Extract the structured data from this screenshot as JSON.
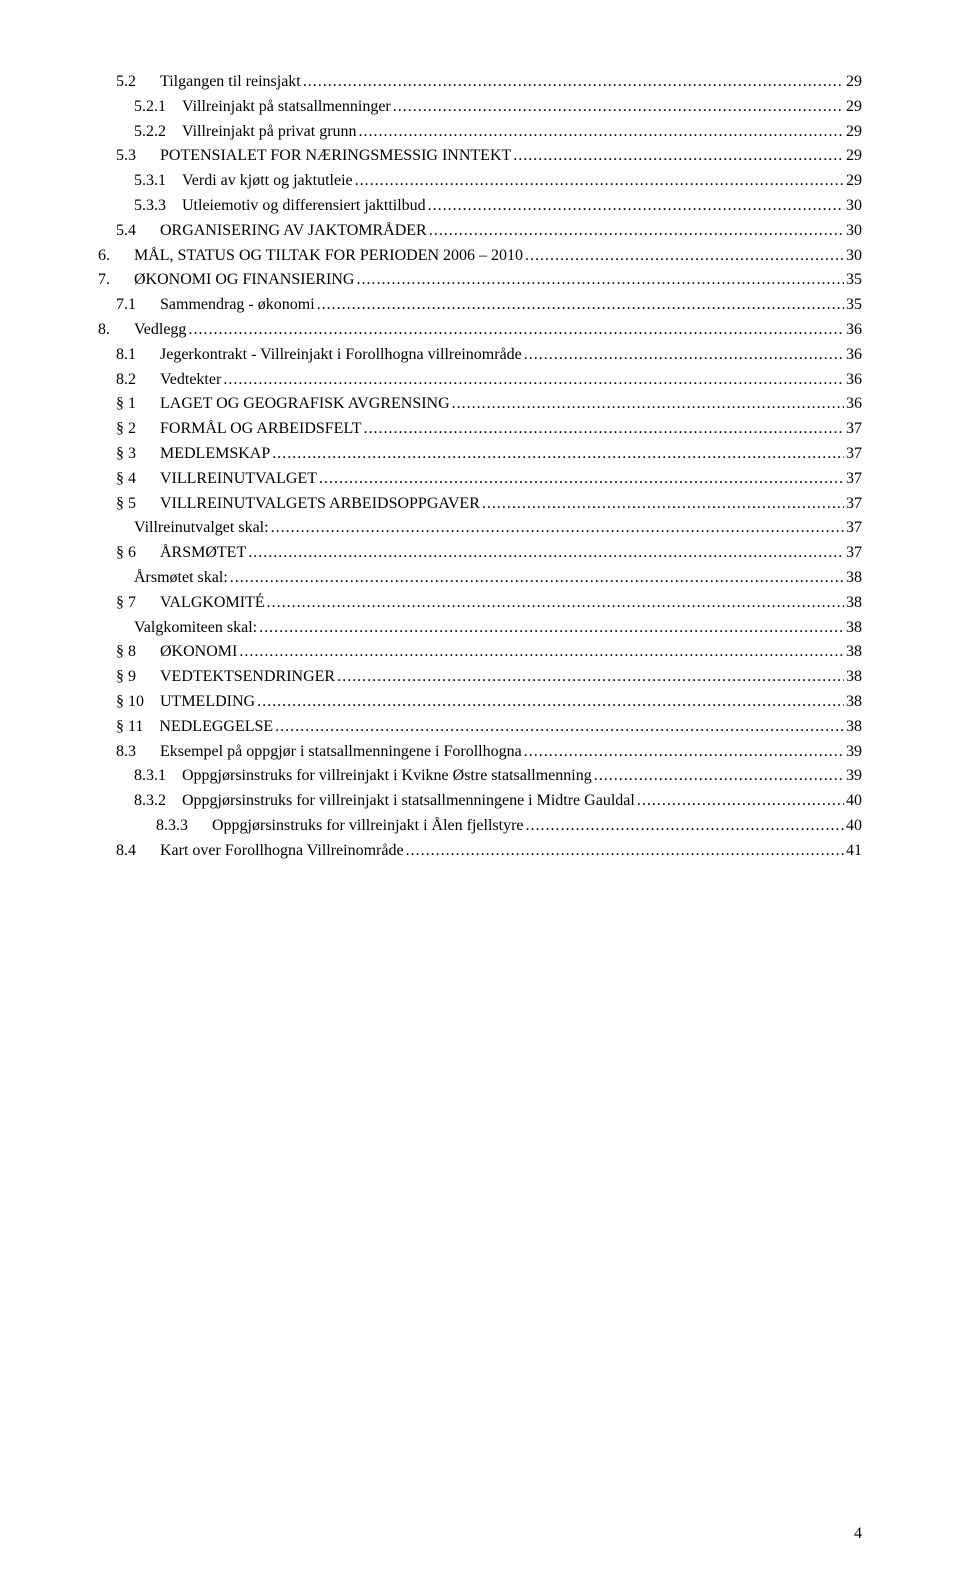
{
  "page_number": "4",
  "toc": [
    {
      "indent": 1,
      "num": "5.2",
      "pad": 6,
      "title": "Tilgangen til reinsjakt",
      "page": "29"
    },
    {
      "indent": 2,
      "num": "5.2.1",
      "pad": 4,
      "title": "Villreinjakt på statsallmenninger",
      "page": "29"
    },
    {
      "indent": 2,
      "num": "5.2.2",
      "pad": 4,
      "title": "Villreinjakt på privat grunn",
      "page": "29"
    },
    {
      "indent": 1,
      "num": "5.3",
      "pad": 6,
      "title": "POTENSIALET FOR NÆRINGSMESSIG INNTEKT",
      "page": "29"
    },
    {
      "indent": 2,
      "num": "5.3.1",
      "pad": 4,
      "title": "Verdi av kjøtt og jaktutleie",
      "page": "29"
    },
    {
      "indent": 2,
      "num": "5.3.3",
      "pad": 4,
      "title": "Utleiemotiv og differensiert jakttilbud",
      "page": "30"
    },
    {
      "indent": 1,
      "num": "5.4",
      "pad": 6,
      "title": "ORGANISERING AV JAKTOMRÅDER",
      "page": "30"
    },
    {
      "indent": 0,
      "num": "6.",
      "pad": 6,
      "title": "MÅL, STATUS OG TILTAK FOR PERIODEN 2006 – 2010",
      "page": "30"
    },
    {
      "indent": 0,
      "num": "7.",
      "pad": 6,
      "title": "ØKONOMI OG FINANSIERING",
      "page": "35"
    },
    {
      "indent": 1,
      "num": "7.1",
      "pad": 6,
      "title": "Sammendrag - økonomi",
      "page": "35"
    },
    {
      "indent": 0,
      "num": "8.",
      "pad": 6,
      "title": "Vedlegg",
      "page": "36"
    },
    {
      "indent": 1,
      "num": "8.1",
      "pad": 6,
      "title": "Jegerkontrakt - Villreinjakt i Forollhogna villreinområde",
      "page": "36"
    },
    {
      "indent": 1,
      "num": "8.2",
      "pad": 6,
      "title": "Vedtekter",
      "page": "36"
    },
    {
      "indent": 1,
      "num": "§ 1",
      "pad": 6,
      "title": "LAGET OG GEOGRAFISK AVGRENSING",
      "page": "36"
    },
    {
      "indent": 1,
      "num": "§ 2",
      "pad": 6,
      "title": "FORMÅL OG ARBEIDSFELT",
      "page": "37"
    },
    {
      "indent": 1,
      "num": "§ 3",
      "pad": 6,
      "title": "MEDLEMSKAP",
      "page": "37"
    },
    {
      "indent": 1,
      "num": "§ 4",
      "pad": 6,
      "title": "VILLREINUTVALGET",
      "page": "37"
    },
    {
      "indent": 1,
      "num": "§ 5",
      "pad": 6,
      "title": "VILLREINUTVALGETS ARBEIDSOPPGAVER",
      "page": "37"
    },
    {
      "indent": 2,
      "num": "",
      "pad": 0,
      "title": "Villreinutvalget skal:",
      "page": "37"
    },
    {
      "indent": 1,
      "num": "§ 6",
      "pad": 6,
      "title": "ÅRSMØTET",
      "page": "37"
    },
    {
      "indent": 2,
      "num": "",
      "pad": 0,
      "title": "Årsmøtet skal:",
      "page": "38"
    },
    {
      "indent": 1,
      "num": "§ 7",
      "pad": 6,
      "title": "VALGKOMITÉ",
      "page": "38"
    },
    {
      "indent": 2,
      "num": "",
      "pad": 0,
      "title": "Valgkomiteen skal:",
      "page": "38"
    },
    {
      "indent": 1,
      "num": "§ 8",
      "pad": 6,
      "title": "ØKONOMI",
      "page": "38"
    },
    {
      "indent": 1,
      "num": "§ 9",
      "pad": 6,
      "title": "VEDTEKTSENDRINGER",
      "page": "38"
    },
    {
      "indent": 1,
      "num": "§ 10",
      "pad": 4,
      "title": "UTMELDING",
      "page": "38"
    },
    {
      "indent": 1,
      "num": "§ 11",
      "pad": 4,
      "title": "NEDLEGGELSE",
      "page": "38"
    },
    {
      "indent": 1,
      "num": "8.3",
      "pad": 6,
      "title": "Eksempel på oppgjør i statsallmenningene i Forollhogna",
      "page": "39"
    },
    {
      "indent": 2,
      "num": "8.3.1",
      "pad": 4,
      "title": "Oppgjørsinstruks for villreinjakt i Kvikne Østre statsallmenning",
      "page": "39"
    },
    {
      "indent": 2,
      "num": "8.3.2",
      "pad": 4,
      "title": "Oppgjørsinstruks for villreinjakt i statsallmenningene i Midtre Gauldal",
      "page": "40"
    },
    {
      "indent": 3,
      "num": "8.3.3",
      "pad": 6,
      "title": "Oppgjørsinstruks for villreinjakt i Ålen fjellstyre",
      "page": "40"
    },
    {
      "indent": 1,
      "num": "8.4",
      "pad": 6,
      "title": "Kart over Forollhogna Villreinområde",
      "page": "41"
    }
  ]
}
